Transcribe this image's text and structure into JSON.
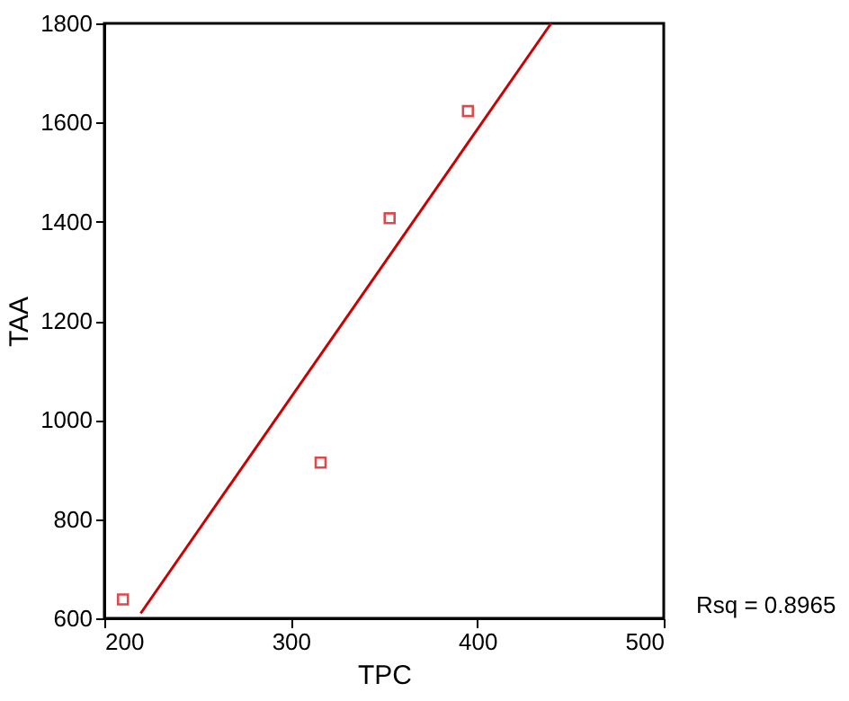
{
  "chart_data": {
    "type": "scatter",
    "xlabel": "TPC",
    "ylabel": "TAA",
    "xlim": [
      200,
      500
    ],
    "xticks": [
      200,
      300,
      400,
      500
    ],
    "ylim": [
      600,
      1800
    ],
    "yticks": [
      600,
      800,
      1000,
      1200,
      1400,
      1600,
      1800
    ],
    "grid": false,
    "marker": "square",
    "series": [
      {
        "color": "#cc0000",
        "x": [
          210,
          316,
          353,
          395
        ],
        "values": [
          638,
          914,
          1407,
          1623
        ]
      },
      {
        "type": "line",
        "color": "#cc0000",
        "marker": "none",
        "line_style": "solid",
        "x": [
          219.5,
          439.6
        ],
        "values": [
          610,
          1800
        ]
      }
    ],
    "annotations": [
      "Rsq = 0.8965"
    ]
  }
}
